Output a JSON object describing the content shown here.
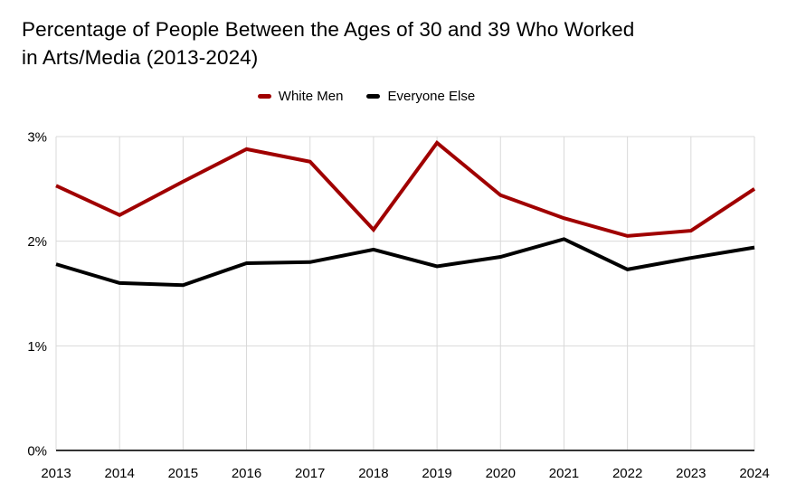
{
  "page": {
    "background": "#ffffff"
  },
  "chart_data": {
    "type": "line",
    "title": "Percentage of People Between the Ages of 30 and 39 Who Worked in Arts/Media (2013-2024)",
    "title_lines": [
      "Percentage of People Between the Ages of 30 and 39 Who Worked",
      "in Arts/Media (2013-2024)"
    ],
    "categories": [
      "2013",
      "2014",
      "2015",
      "2016",
      "2017",
      "2018",
      "2019",
      "2020",
      "2021",
      "2022",
      "2023",
      "2024"
    ],
    "series": [
      {
        "name": "White Men",
        "color": "#a00000",
        "values": [
          2.53,
          2.25,
          2.57,
          2.88,
          2.76,
          2.11,
          2.94,
          2.44,
          2.22,
          2.05,
          2.1,
          2.5
        ]
      },
      {
        "name": "Everyone Else",
        "color": "#000000",
        "values": [
          1.78,
          1.6,
          1.58,
          1.79,
          1.8,
          1.92,
          1.76,
          1.85,
          2.02,
          1.73,
          1.84,
          1.94
        ]
      }
    ],
    "xlabel": "",
    "ylabel": "",
    "ylim": [
      0,
      3
    ],
    "yticks": [
      0,
      1,
      2,
      3
    ],
    "ytick_labels": [
      "0%",
      "1%",
      "2%",
      "3%"
    ],
    "grid": true,
    "legend_position": "top-center",
    "colors": {
      "gridline": "#d9d9d9",
      "baseline": "#333333",
      "axis_text": "#000000",
      "title_text": "#000000"
    }
  }
}
